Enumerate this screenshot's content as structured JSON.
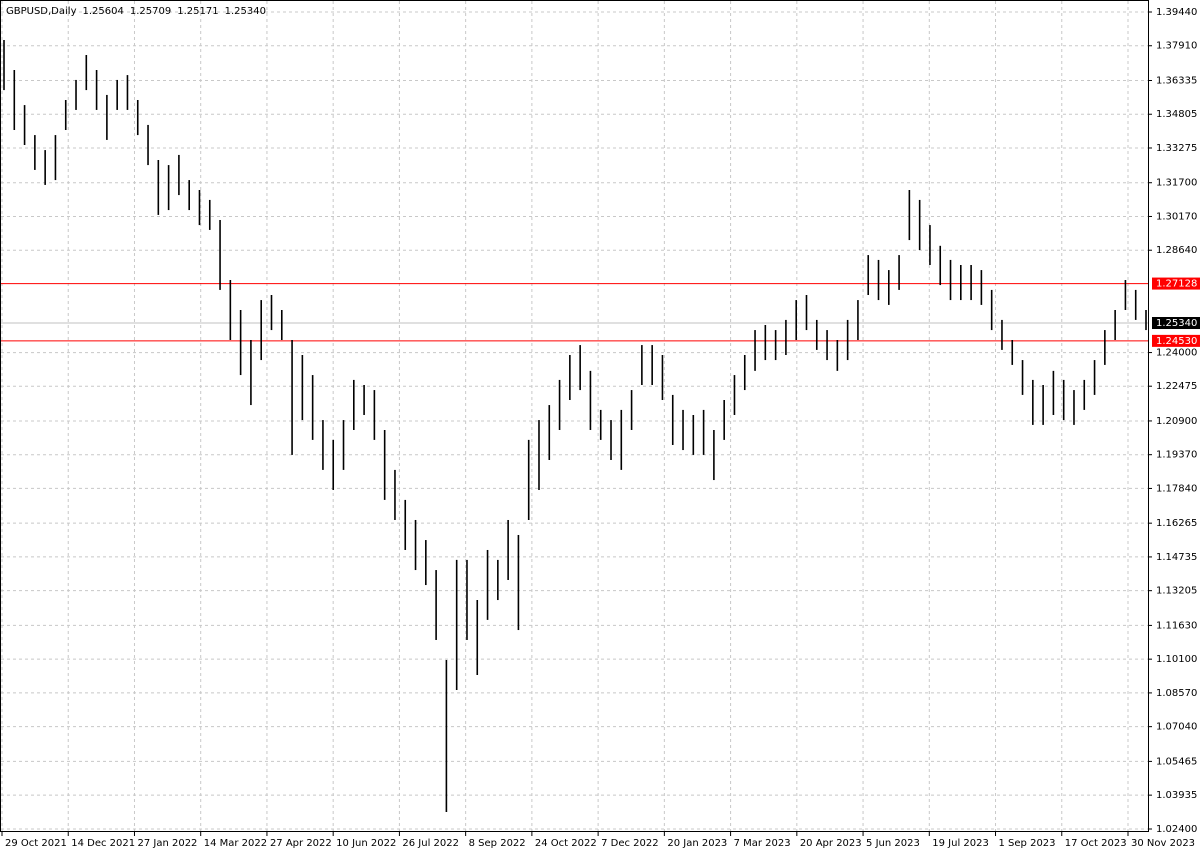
{
  "chart_data": {
    "type": "bar-range",
    "header": {
      "symbol": "GBPUSD,Daily",
      "last_bar": [
        {
          "value": 1.25604,
          "label": "1.25604"
        },
        {
          "value": 1.25709,
          "label": "1.25709"
        },
        {
          "value": 1.25171,
          "label": "1.25171"
        },
        {
          "value": 1.2534,
          "label": "1.25340"
        }
      ]
    },
    "color": "#000000",
    "high": [
      1.3817,
      1.3681,
      1.3522,
      1.3386,
      1.3318,
      1.3386,
      1.3545,
      1.3636,
      1.3749,
      1.3681,
      1.3568,
      1.3636,
      1.3658,
      1.3545,
      1.3432,
      1.3273,
      1.325,
      1.3296,
      1.3182,
      1.3137,
      1.3092,
      1.3001,
      1.2729,
      1.2593,
      1.2457,
      1.2638,
      1.2661,
      1.2593,
      1.2457,
      1.2389,
      1.2298,
      1.2094,
      1.2004,
      1.2094,
      1.2276,
      1.2253,
      1.223,
      1.2049,
      1.1868,
      1.1732,
      1.1641,
      1.155,
      1.1414,
      1.1006,
      1.146,
      1.146,
      1.1278,
      1.1505,
      1.146,
      1.1641,
      1.1573,
      1.2004,
      1.2094,
      1.2162,
      1.2276,
      1.2389,
      1.2434,
      1.2317,
      1.214,
      1.2094,
      1.214,
      1.223,
      1.2434,
      1.2434,
      1.2389,
      1.2208,
      1.214,
      1.2117,
      1.214,
      1.2049,
      1.2185,
      1.2298,
      1.2389,
      1.2502,
      1.2525,
      1.2502,
      1.2548,
      1.2638,
      1.2661,
      1.2548,
      1.2502,
      1.2457,
      1.2548,
      1.2638,
      1.2842,
      1.282,
      1.2774,
      1.2842,
      1.3137,
      1.3092,
      1.2978,
      1.2884,
      1.282,
      1.2797,
      1.2797,
      1.2774,
      1.2684,
      1.2548,
      1.2457,
      1.2366,
      1.2276,
      1.2253,
      1.2317,
      1.2276,
      1.223,
      1.2276,
      1.2366,
      1.2502,
      1.2593,
      1.2729,
      1.2684,
      1.2593
    ],
    "low": [
      1.359,
      1.3409,
      1.3341,
      1.3228,
      1.316,
      1.3182,
      1.3409,
      1.35,
      1.359,
      1.35,
      1.3364,
      1.35,
      1.35,
      1.3386,
      1.325,
      1.3024,
      1.3046,
      1.3114,
      1.3046,
      1.2978,
      1.2956,
      1.2684,
      1.2457,
      1.2298,
      1.2162,
      1.2366,
      1.2502,
      1.2457,
      1.1936,
      1.2094,
      1.2004,
      1.1868,
      1.1777,
      1.1868,
      1.2049,
      1.2117,
      1.2004,
      1.1732,
      1.1641,
      1.1505,
      1.1414,
      1.1346,
      1.1097,
      1.0317,
      1.087,
      1.1097,
      1.0938,
      1.1188,
      1.1278,
      1.1369,
      1.1142,
      1.1641,
      1.1777,
      1.1913,
      1.2049,
      1.2185,
      1.223,
      1.2049,
      1.2004,
      1.1913,
      1.1868,
      1.2049,
      1.2253,
      1.2253,
      1.2185,
      1.1981,
      1.1958,
      1.1936,
      1.1936,
      1.1822,
      1.2004,
      1.2117,
      1.223,
      1.2317,
      1.2366,
      1.2366,
      1.2389,
      1.2457,
      1.2502,
      1.2412,
      1.2366,
      1.2317,
      1.2366,
      1.2457,
      1.2661,
      1.2638,
      1.2616,
      1.2684,
      1.291,
      1.2865,
      1.2797,
      1.2706,
      1.2638,
      1.2638,
      1.2638,
      1.2616,
      1.2502,
      1.2412,
      1.2344,
      1.2208,
      1.2072,
      1.2072,
      1.2117,
      1.2094,
      1.2072,
      1.214,
      1.2208,
      1.2344,
      1.2457,
      1.2593,
      1.2548,
      1.2502
    ],
    "ylim": [
      1.024,
      1.3944
    ],
    "yticks": [
      {
        "value": 1.3944,
        "label": "1.39440"
      },
      {
        "value": 1.3791,
        "label": "1.37910"
      },
      {
        "value": 1.36335,
        "label": "1.36335"
      },
      {
        "value": 1.34805,
        "label": "1.34805"
      },
      {
        "value": 1.33275,
        "label": "1.33275"
      },
      {
        "value": 1.317,
        "label": "1.31700"
      },
      {
        "value": 1.3017,
        "label": "1.30170"
      },
      {
        "value": 1.2864,
        "label": "1.28640"
      },
      {
        "value": 1.24,
        "label": "1.24000"
      },
      {
        "value": 1.22475,
        "label": "1.22475"
      },
      {
        "value": 1.209,
        "label": "1.20900"
      },
      {
        "value": 1.1937,
        "label": "1.19370"
      },
      {
        "value": 1.1784,
        "label": "1.17840"
      },
      {
        "value": 1.16265,
        "label": "1.16265"
      },
      {
        "value": 1.14735,
        "label": "1.14735"
      },
      {
        "value": 1.13205,
        "label": "1.13205"
      },
      {
        "value": 1.1163,
        "label": "1.11630"
      },
      {
        "value": 1.101,
        "label": "1.10100"
      },
      {
        "value": 1.0857,
        "label": "1.08570"
      },
      {
        "value": 1.0704,
        "label": "1.07040"
      },
      {
        "value": 1.05465,
        "label": "1.05465"
      },
      {
        "value": 1.03935,
        "label": "1.03935"
      },
      {
        "value": 1.024,
        "label": "1.02400"
      }
    ],
    "x_labels": [
      "29 Oct 2021",
      "14 Dec 2021",
      "27 Jan 2022",
      "14 Mar 2022",
      "27 Apr 2022",
      "10 Jun 2022",
      "26 Jul 2022",
      "8 Sep 2022",
      "24 Oct 2022",
      "7 Dec 2022",
      "20 Jan 2023",
      "7 Mar 2023",
      "20 Apr 2023",
      "5 Jun 2023",
      "19 Jul 2023",
      "1 Sep 2023",
      "17 Oct 2023",
      "30 Nov 2023"
    ],
    "levels": [
      {
        "value": 1.27128,
        "label": "1.27128",
        "color": "#ff0000"
      },
      {
        "value": 1.2453,
        "label": "1.24530",
        "color": "#ff0000"
      }
    ],
    "current_price": {
      "value": 1.2534,
      "label": "1.25340",
      "color": "#000000"
    },
    "grid": true
  }
}
